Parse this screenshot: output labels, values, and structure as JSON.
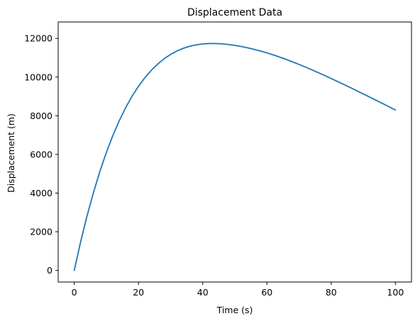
{
  "chart_data": {
    "type": "line",
    "title": "Displacement Data",
    "xlabel": "Time (s)",
    "ylabel": "Displacement (m)",
    "xlim": [
      -5,
      105
    ],
    "ylim": [
      -600,
      12850
    ],
    "xticks": [
      0,
      20,
      40,
      60,
      80,
      100
    ],
    "yticks": [
      0,
      2000,
      4000,
      6000,
      8000,
      10000,
      12000
    ],
    "grid": false,
    "legend": "none",
    "color": "#1f77b4",
    "series": [
      {
        "x": [
          0,
          2,
          4,
          6,
          8,
          10,
          12,
          14,
          16,
          18,
          20,
          22,
          24,
          26,
          28,
          30,
          32,
          34,
          36,
          38,
          40,
          42,
          44,
          46,
          48,
          50,
          52,
          54,
          56,
          58,
          60,
          62,
          64,
          66,
          68,
          70,
          72,
          74,
          76,
          78,
          80,
          82,
          84,
          86,
          88,
          90,
          92,
          94,
          96,
          98,
          100
        ],
        "values": [
          0,
          1485,
          2828,
          4038,
          5126,
          6100,
          6966,
          7736,
          8415,
          9008,
          9523,
          9969,
          10352,
          10676,
          10948,
          11170,
          11350,
          11490,
          11595,
          11668,
          11713,
          11734,
          11735,
          11718,
          11686,
          11640,
          11582,
          11513,
          11435,
          11347,
          11250,
          11145,
          11032,
          10912,
          10785,
          10653,
          10516,
          10374,
          10228,
          10079,
          9926,
          9770,
          9612,
          9452,
          9290,
          9127,
          8963,
          8798,
          8632,
          8466,
          8300
        ]
      }
    ]
  }
}
